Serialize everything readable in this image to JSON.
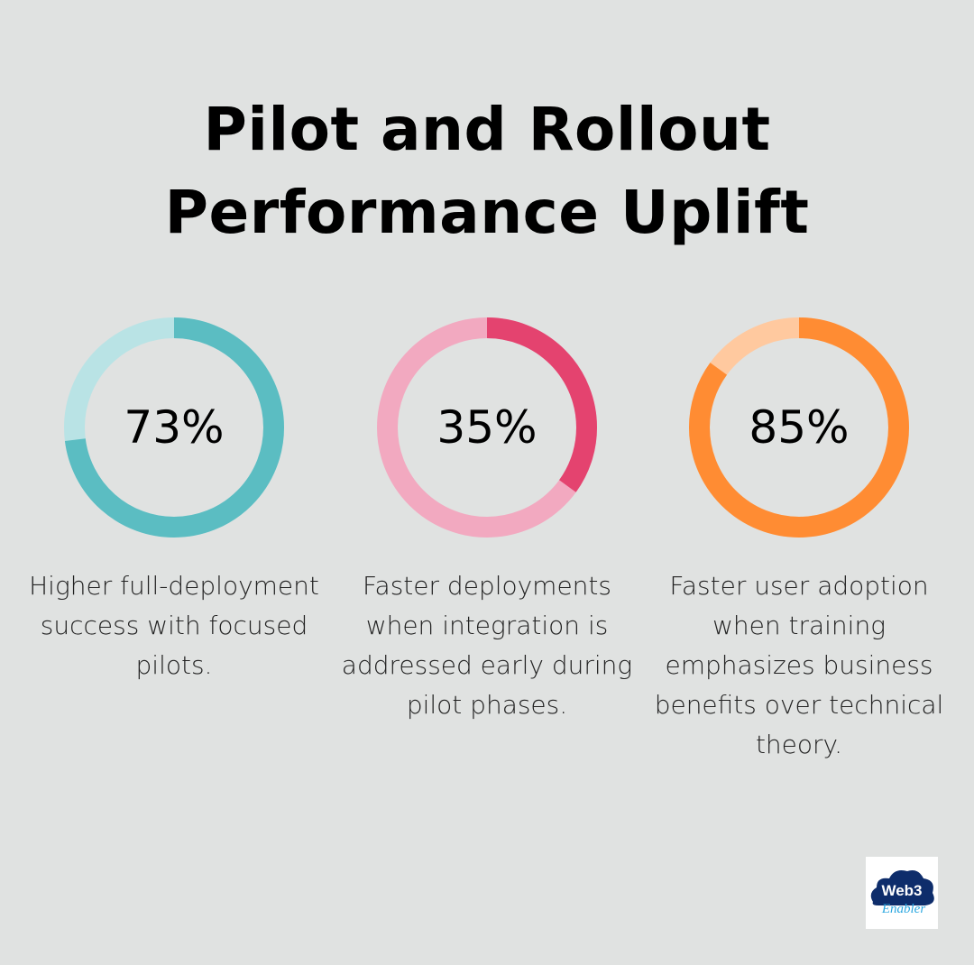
{
  "title_line1": "Pilot and Rollout",
  "title_line2": "Performance Uplift",
  "chart_data": [
    {
      "type": "pie",
      "variant": "donut",
      "value": 73,
      "label": "73%",
      "description": "Higher full-deployment success with focused pilots.",
      "color": "#5bbdc2",
      "remainder_color": "#b9e3e5"
    },
    {
      "type": "pie",
      "variant": "donut",
      "value": 35,
      "label": "35%",
      "description": "Faster deployments when integration is addressed early during pilot phases.",
      "color": "#e4436f",
      "remainder_color": "#f2a9c0"
    },
    {
      "type": "pie",
      "variant": "donut",
      "value": 85,
      "label": "85%",
      "description": "Faster user adoption when training emphasizes business benefits over technical theory.",
      "color": "#ff8c33",
      "remainder_color": "#ffc99f"
    }
  ],
  "logo": {
    "text_top": "Web3",
    "text_bottom": "Enabler",
    "color_dark": "#0e2d6b",
    "color_light": "#2aa7e0"
  }
}
